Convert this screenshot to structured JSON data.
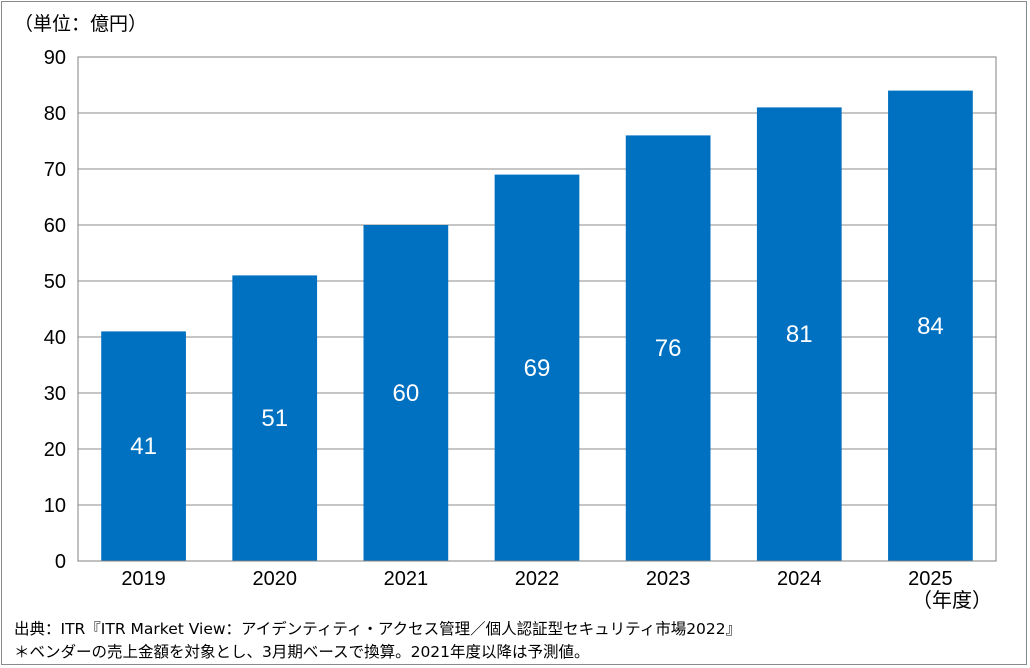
{
  "chart_data": {
    "type": "bar",
    "unit_label": "（単位：億円）",
    "xlabel": "（年度）",
    "ylabel": "",
    "categories": [
      "2019",
      "2020",
      "2021",
      "2022",
      "2023",
      "2024",
      "2025"
    ],
    "values": [
      41,
      51,
      60,
      69,
      76,
      81,
      84
    ],
    "data_labels": [
      "41",
      "51",
      "60",
      "69",
      "76",
      "81",
      "84"
    ],
    "ylim": [
      0,
      90
    ],
    "yticks": [
      0,
      10,
      20,
      30,
      40,
      50,
      60,
      70,
      80,
      90
    ],
    "ytick_labels": [
      "0",
      "10",
      "20",
      "30",
      "40",
      "50",
      "60",
      "70",
      "80",
      "90"
    ],
    "grid": true,
    "bar_color": "#0070c0"
  },
  "footnotes": {
    "source": "出典：ITR『ITR Market View：アイデンティティ・アクセス管理／個人認証型セキュリティ市場2022』",
    "note": "＊ベンダーの売上金額を対象とし、3月期ベースで換算。2021年度以降は予測値。"
  }
}
